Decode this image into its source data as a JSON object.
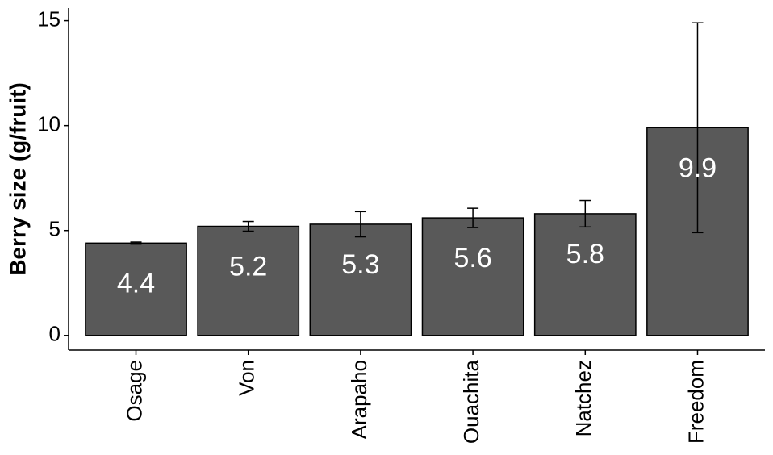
{
  "chart_data": {
    "type": "bar",
    "y_label": "Berry size (g/fruit)",
    "categories": [
      "Osage",
      "Von",
      "Arapaho",
      "Ouachita",
      "Natchez",
      "Freedom"
    ],
    "values": [
      4.4,
      5.2,
      5.3,
      5.6,
      5.8,
      9.9
    ],
    "errors": [
      0.05,
      0.23,
      0.6,
      0.46,
      0.63,
      5.0
    ],
    "color": "#595959",
    "ylim": [
      -0.7,
      15.6
    ],
    "yticks": [
      0,
      5,
      10,
      15
    ],
    "grid": false
  }
}
